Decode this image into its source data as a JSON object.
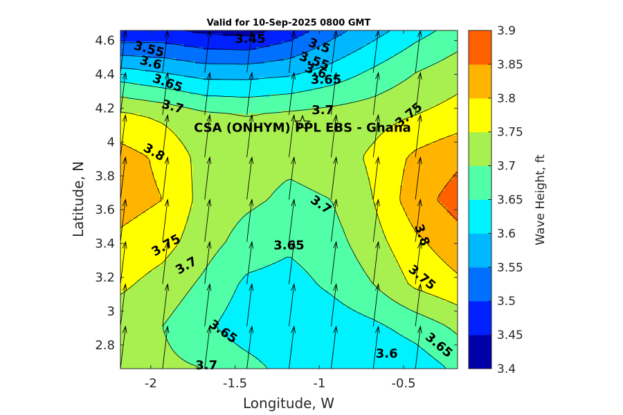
{
  "chart_data": {
    "type": "heatmap",
    "title": "Valid for 10-Sep-2025 0800 GMT",
    "xlabel": "Longitude, W",
    "ylabel": "Latitude, N",
    "colorbar_label": "Wave Height, ft",
    "xlim": [
      -2.18,
      -0.18
    ],
    "ylim": [
      2.66,
      4.66
    ],
    "x_ticks": [
      -2,
      -1.5,
      -1,
      -0.5
    ],
    "x_tick_labels": [
      "-2",
      "-1.5",
      "-1",
      "-0.5"
    ],
    "y_ticks": [
      2.8,
      3,
      3.2,
      3.4,
      3.6,
      3.8,
      4,
      4.2,
      4.4,
      4.6
    ],
    "y_tick_labels": [
      "2.8",
      "3",
      "3.2",
      "3.4",
      "3.6",
      "3.8",
      "4",
      "4.2",
      "4.4",
      "4.6"
    ],
    "levels": [
      3.4,
      3.45,
      3.5,
      3.55,
      3.6,
      3.65,
      3.7,
      3.75,
      3.8,
      3.85,
      3.9
    ],
    "level_labels": [
      "3.4",
      "3.45",
      "3.5",
      "3.55",
      "3.6",
      "3.65",
      "3.7",
      "3.75",
      "3.8",
      "3.85",
      "3.9"
    ],
    "level_colors": [
      "#0000a8",
      "#0020ff",
      "#0070ff",
      "#00b8ff",
      "#00f2ff",
      "#50ffa8",
      "#a8f050",
      "#ffff00",
      "#ffb400",
      "#ff6000"
    ],
    "grid_x": [
      -2.18,
      -1.93,
      -1.68,
      -1.43,
      -1.18,
      -0.93,
      -0.68,
      -0.43,
      -0.18
    ],
    "grid_y": [
      2.66,
      2.91,
      3.16,
      3.41,
      3.66,
      3.91,
      4.16,
      4.41,
      4.66
    ],
    "z": [
      [
        3.73,
        3.71,
        3.7,
        3.67,
        3.63,
        3.62,
        3.6,
        3.62,
        3.66
      ],
      [
        3.72,
        3.7,
        3.66,
        3.62,
        3.61,
        3.62,
        3.64,
        3.67,
        3.71
      ],
      [
        3.76,
        3.73,
        3.69,
        3.64,
        3.63,
        3.66,
        3.7,
        3.76,
        3.79
      ],
      [
        3.79,
        3.77,
        3.72,
        3.68,
        3.66,
        3.68,
        3.73,
        3.79,
        3.83
      ],
      [
        3.82,
        3.8,
        3.73,
        3.71,
        3.69,
        3.7,
        3.75,
        3.83,
        3.87
      ],
      [
        3.82,
        3.79,
        3.73,
        3.72,
        3.71,
        3.72,
        3.76,
        3.81,
        3.84
      ],
      [
        3.76,
        3.74,
        3.71,
        3.7,
        3.71,
        3.72,
        3.73,
        3.75,
        3.77
      ],
      [
        3.62,
        3.6,
        3.58,
        3.58,
        3.59,
        3.62,
        3.66,
        3.7,
        3.73
      ],
      [
        3.45,
        3.46,
        3.44,
        3.43,
        3.47,
        3.53,
        3.58,
        3.63,
        3.67
      ]
    ],
    "contour_labels": [
      {
        "text": "3.45",
        "lon": -1.41,
        "lat": 4.61,
        "angle": 0
      },
      {
        "text": "3.55",
        "lon": -2.01,
        "lat": 4.55,
        "angle": 15
      },
      {
        "text": "3.6",
        "lon": -2.0,
        "lat": 4.47,
        "angle": 15
      },
      {
        "text": "3.65",
        "lon": -1.9,
        "lat": 4.35,
        "angle": 20
      },
      {
        "text": "3.7",
        "lon": -1.87,
        "lat": 4.21,
        "angle": 15
      },
      {
        "text": "3.8",
        "lon": -1.98,
        "lat": 3.94,
        "angle": 30
      },
      {
        "text": "3.75",
        "lon": -1.91,
        "lat": 3.39,
        "angle": -30
      },
      {
        "text": "3.7",
        "lon": -1.79,
        "lat": 3.27,
        "angle": -30
      },
      {
        "text": "3.5",
        "lon": -1.0,
        "lat": 4.57,
        "angle": 20
      },
      {
        "text": "3.55",
        "lon": -1.03,
        "lat": 4.48,
        "angle": 20
      },
      {
        "text": "3.6",
        "lon": -1.02,
        "lat": 4.42,
        "angle": 20
      },
      {
        "text": "3.65",
        "lon": -0.96,
        "lat": 4.37,
        "angle": 0
      },
      {
        "text": "3.7",
        "lon": -0.98,
        "lat": 4.19,
        "angle": 0
      },
      {
        "text": "3.75",
        "lon": -0.47,
        "lat": 4.16,
        "angle": -40
      },
      {
        "text": "3.7",
        "lon": -0.99,
        "lat": 3.63,
        "angle": 35
      },
      {
        "text": "3.65",
        "lon": -1.18,
        "lat": 3.39,
        "angle": 0
      },
      {
        "text": "3.8",
        "lon": -0.39,
        "lat": 3.45,
        "angle": 70
      },
      {
        "text": "3.75",
        "lon": -0.39,
        "lat": 3.2,
        "angle": 40
      },
      {
        "text": "3.65",
        "lon": -1.57,
        "lat": 2.88,
        "angle": 35
      },
      {
        "text": "3.6",
        "lon": -0.6,
        "lat": 2.75,
        "angle": 0
      },
      {
        "text": "3.65",
        "lon": -0.29,
        "lat": 2.8,
        "angle": 40
      },
      {
        "text": "3.7",
        "lon": -1.67,
        "lat": 2.68,
        "angle": 0
      }
    ],
    "annotation": {
      "text": "CSA (ONHYM) PPL EBS  - Ghana",
      "lon": -1.1,
      "lat": 4.06
    },
    "marker": {
      "type": "star",
      "lon": -1.1,
      "lat": 4.11
    },
    "vector_arrows": {
      "start_lat": 2.66,
      "length_deg": 0.25,
      "heading_lon_per_lat": 0.12
    }
  }
}
